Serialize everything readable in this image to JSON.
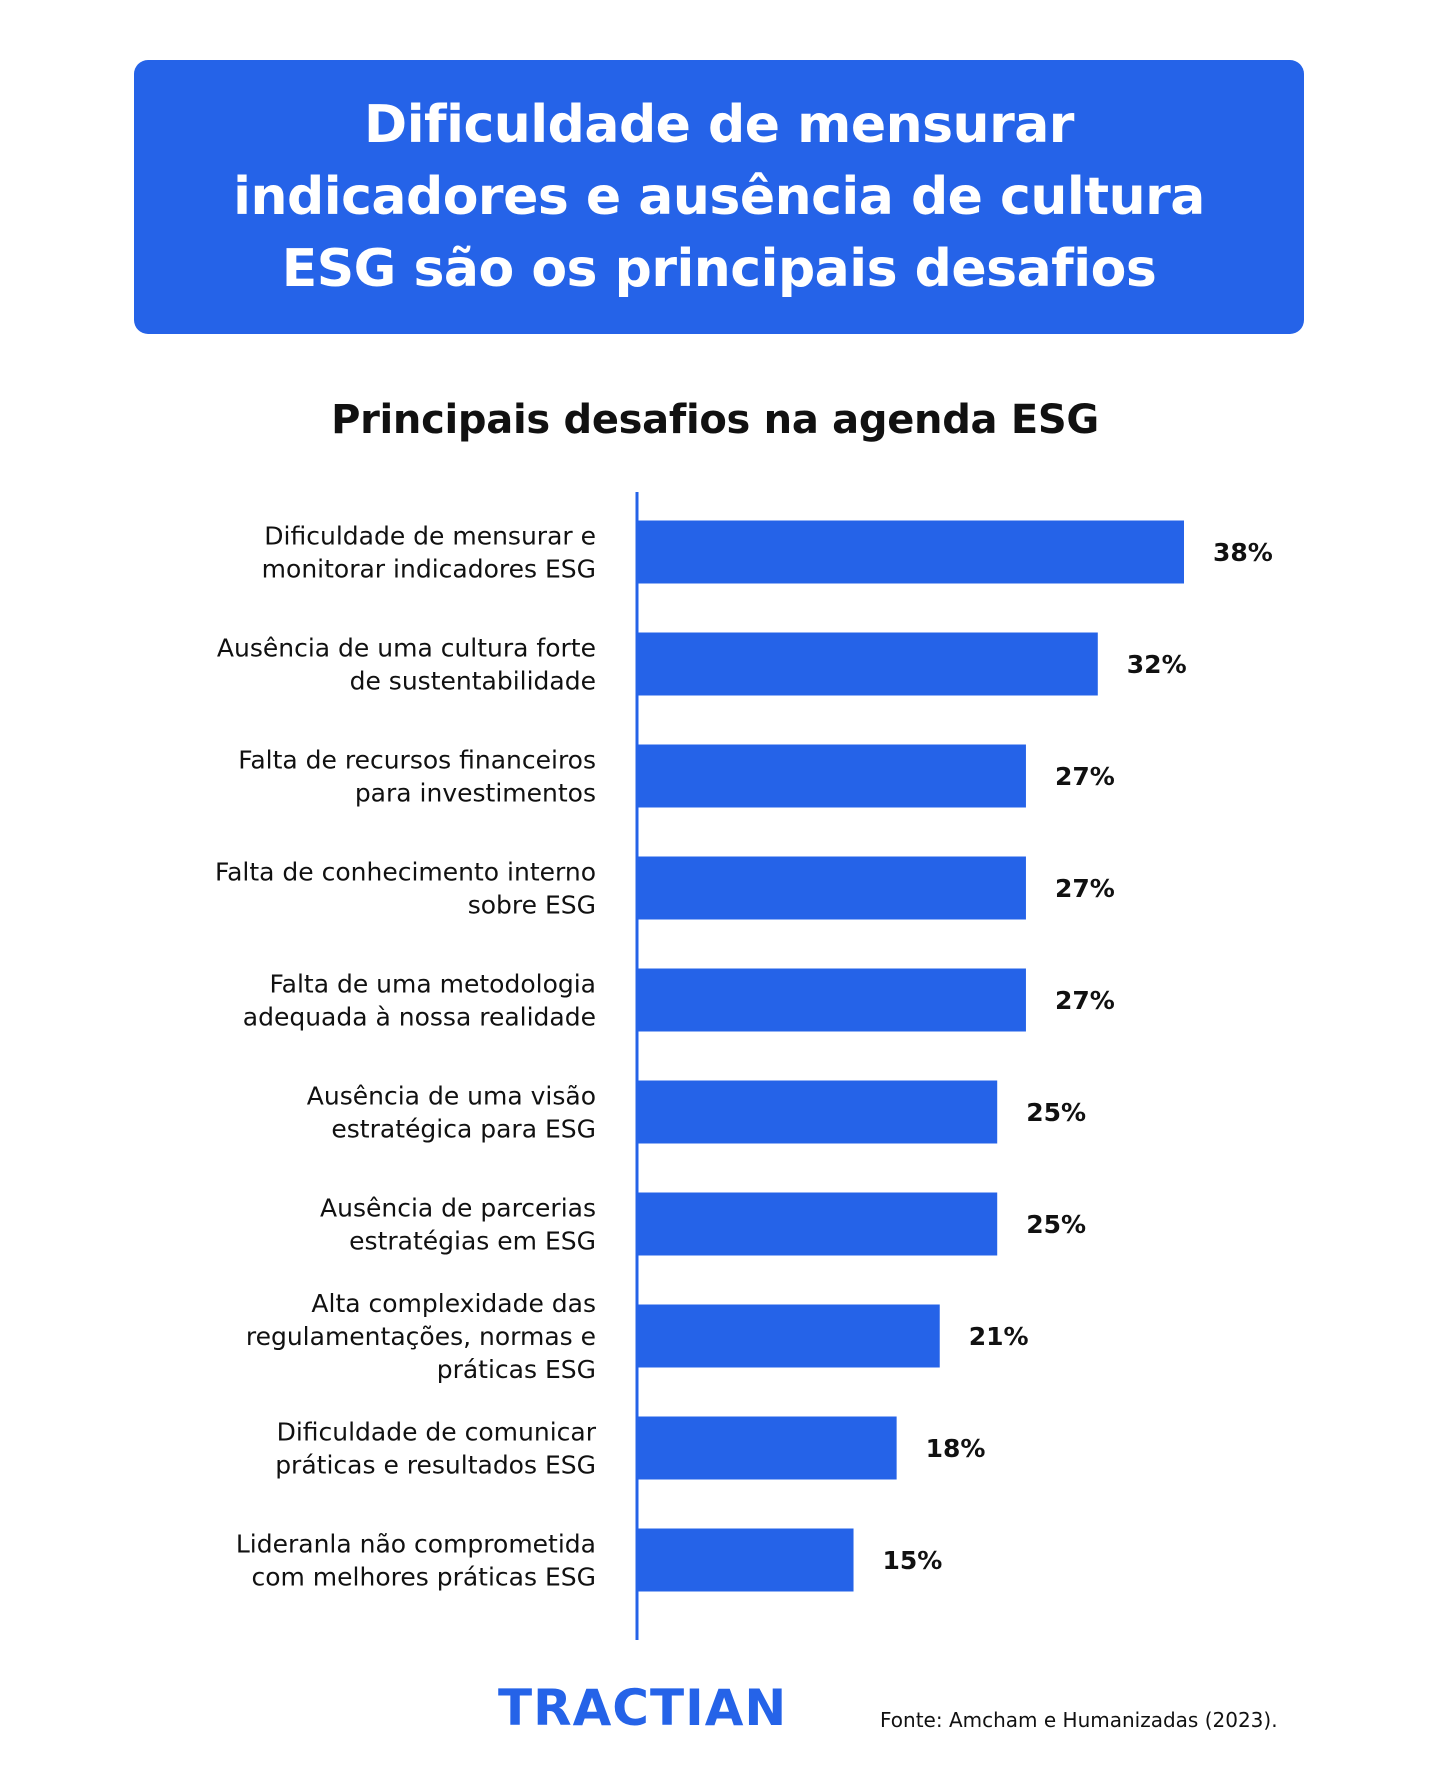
{
  "banner": {
    "title": "Dificuldade de mensurar\nindicadores e ausência de cultura\nESG são os principais desafios"
  },
  "brand": {
    "logo_text": "TRACTIAN"
  },
  "footer": {
    "source": "Fonte: Amcham e Humanizadas (2023)."
  },
  "colors": {
    "accent": "#2563e8",
    "text": "#111111",
    "background": "#ffffff"
  },
  "chart_data": {
    "type": "bar",
    "orientation": "horizontal",
    "title": "Principais desafios na agenda ESG",
    "categories": [
      [
        "Dificuldade de mensurar e",
        "monitorar indicadores ESG"
      ],
      [
        "Ausência de uma cultura forte",
        "de sustentabilidade"
      ],
      [
        "Falta de recursos financeiros",
        "para investimentos"
      ],
      [
        "Falta de conhecimento interno",
        "sobre ESG"
      ],
      [
        "Falta de uma metodologia",
        "adequada à nossa realidade"
      ],
      [
        "Ausência de uma visão",
        "estratégica para ESG"
      ],
      [
        "Ausência de parcerias",
        "estratégias em ESG"
      ],
      [
        "Alta complexidade das",
        "regulamentações, normas e",
        "práticas ESG"
      ],
      [
        "Dificuldade de comunicar",
        "práticas e resultados ESG"
      ],
      [
        "Lideranla não comprometida",
        "com melhores práticas ESG"
      ]
    ],
    "values": [
      38,
      32,
      27,
      27,
      27,
      25,
      25,
      21,
      18,
      15
    ],
    "value_labels": [
      "38%",
      "32%",
      "27%",
      "27%",
      "27%",
      "25%",
      "25%",
      "21%",
      "18%",
      "15%"
    ],
    "xlim": [
      0,
      38
    ],
    "grid": false,
    "legend": "none"
  }
}
